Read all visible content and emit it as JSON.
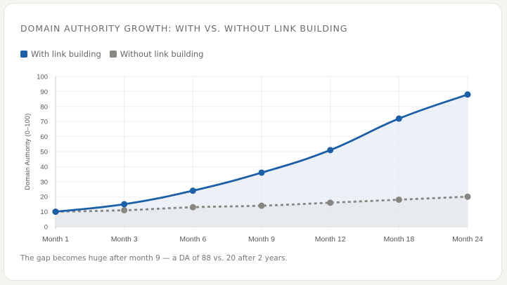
{
  "chart_data": {
    "type": "line",
    "title": "DOMAIN AUTHORITY GROWTH: WITH VS. WITHOUT LINK BUILDING",
    "categories": [
      "Month 1",
      "Month 3",
      "Month 6",
      "Month 9",
      "Month 12",
      "Month 18",
      "Month 24"
    ],
    "series": [
      {
        "name": "With link building",
        "values": [
          10,
          15,
          24,
          36,
          51,
          72,
          88
        ],
        "color": "#1a5fa8",
        "style": "solid",
        "fill": "#e3ebf4"
      },
      {
        "name": "Without link building",
        "values": [
          10,
          11,
          13,
          14,
          16,
          18,
          20
        ],
        "color": "#888680",
        "style": "dashed",
        "fill": "#e4e6ea"
      }
    ],
    "ylabel": "Domain Authority (0–100)",
    "xlabel": "",
    "ylim": [
      0,
      100
    ],
    "yticks": [
      0,
      10,
      20,
      30,
      40,
      50,
      60,
      70,
      80,
      90,
      100
    ],
    "grid": true,
    "legend": "top-left"
  },
  "note": "The gap becomes huge after month 9 — a DA of 88 vs. 20 after 2 years."
}
